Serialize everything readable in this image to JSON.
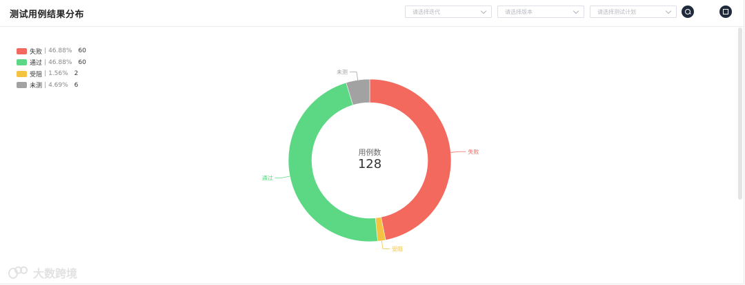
{
  "header": {
    "title": "测试用例结果分布",
    "iteration_placeholder": "请选择迭代",
    "version_placeholder": "请选择版本",
    "plan_placeholder": "请选择测试计划"
  },
  "chart_data": {
    "type": "pie",
    "variant": "donut",
    "center_label": "用例数",
    "center_value": "128",
    "total": 128,
    "legend_position": "top-left",
    "slices": [
      {
        "name": "失败",
        "value": 60,
        "percent": "46.88%",
        "color": "#f4695e"
      },
      {
        "name": "受阻",
        "value": 2,
        "percent": "1.56%",
        "color": "#f5c342"
      },
      {
        "name": "通过",
        "value": 60,
        "percent": "46.88%",
        "color": "#5cd884"
      },
      {
        "name": "未测",
        "value": 6,
        "percent": "4.69%",
        "color": "#a2a2a2"
      }
    ],
    "legend_order": [
      "失败",
      "通过",
      "受阻",
      "未测"
    ]
  },
  "watermark": {
    "text": "大数跨境"
  }
}
